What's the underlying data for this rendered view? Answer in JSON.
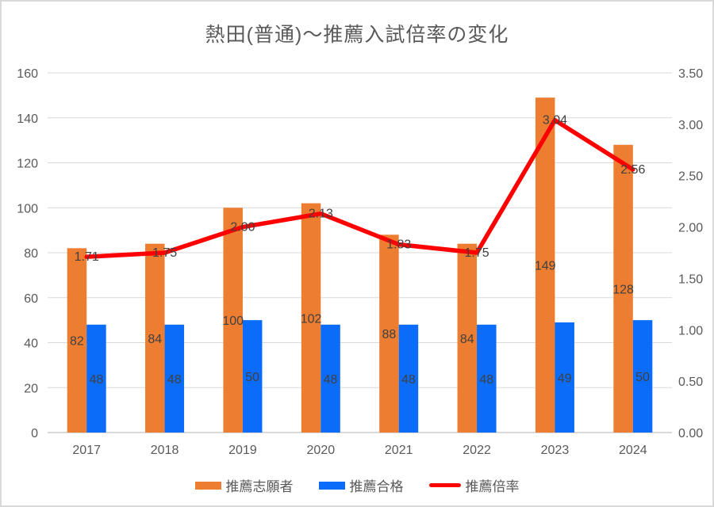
{
  "chart_data": {
    "type": "combo",
    "title": "熱田(普通)～推薦入試倍率の変化",
    "categories": [
      "2017",
      "2018",
      "2019",
      "2020",
      "2021",
      "2022",
      "2023",
      "2024"
    ],
    "series": [
      {
        "key": "applicants",
        "name": "推薦志願者",
        "type": "bar",
        "axis": "left",
        "color": "#ED7D31",
        "values": [
          82,
          84,
          100,
          102,
          88,
          84,
          149,
          128
        ],
        "labels": [
          "82",
          "84",
          "100",
          "102",
          "88",
          "84",
          "149",
          "128"
        ]
      },
      {
        "key": "passed",
        "name": "推薦合格",
        "type": "bar",
        "axis": "left",
        "color": "#0B6CFA",
        "values": [
          48,
          48,
          50,
          48,
          48,
          48,
          49,
          50
        ],
        "labels": [
          "48",
          "48",
          "50",
          "48",
          "48",
          "48",
          "49",
          "50"
        ]
      },
      {
        "key": "ratio",
        "name": "推薦倍率",
        "type": "line",
        "axis": "right",
        "color": "#FF0000",
        "values": [
          1.71,
          1.75,
          2.0,
          2.13,
          1.83,
          1.75,
          3.04,
          2.56
        ],
        "labels": [
          "1.71",
          "1.75",
          "2.00",
          "2.13",
          "1.83",
          "1.75",
          "3.04",
          "2.56"
        ]
      }
    ],
    "left_axis": {
      "min": 0,
      "max": 160,
      "step": 20,
      "tick_labels": [
        "0",
        "20",
        "40",
        "60",
        "80",
        "100",
        "120",
        "140",
        "160"
      ]
    },
    "right_axis": {
      "min": 0,
      "max": 3.5,
      "step": 0.5,
      "tick_labels": [
        "0.00",
        "0.50",
        "1.00",
        "1.50",
        "2.00",
        "2.50",
        "3.00",
        "3.50"
      ]
    },
    "grid": true,
    "legend_position": "bottom",
    "colors": {
      "grid": "#D9D9D9",
      "axis_line": "#D9D9D9",
      "tick_text": "#595959",
      "category_text": "#595959",
      "data_label": "#404040",
      "title_text": "#595959",
      "background": "#FFFFFF",
      "border": "#D9D9D9"
    }
  }
}
